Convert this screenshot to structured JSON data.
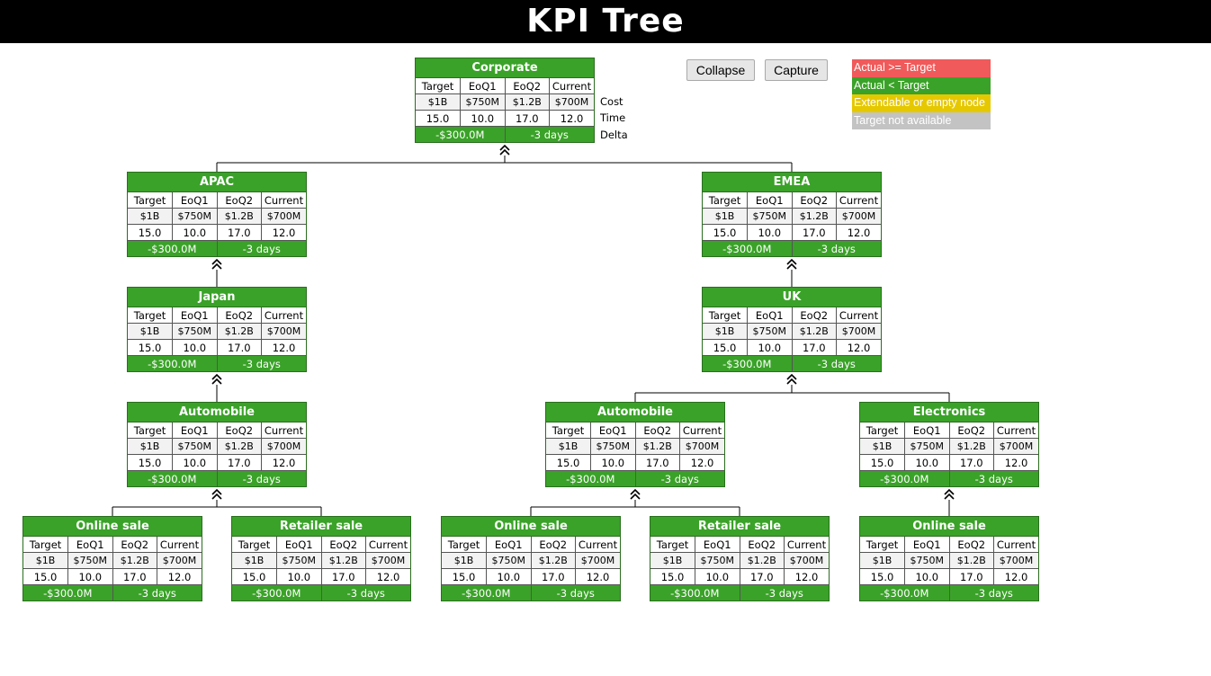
{
  "page_title": "KPI Tree",
  "buttons": {
    "collapse": "Collapse",
    "capture": "Capture"
  },
  "legend": [
    {
      "label": "Actual >= Target",
      "color": "#f05a5a"
    },
    {
      "label": "Actual < Target",
      "color": "#3aa228"
    },
    {
      "label": "Extendable or empty node",
      "color": "#e6c800"
    },
    {
      "label": "Target not available",
      "color": "#c3c3c3"
    }
  ],
  "row_labels": {
    "cost": "Cost",
    "time": "Time",
    "delta": "Delta"
  },
  "columns": [
    "Target",
    "EoQ1",
    "EoQ2",
    "Current"
  ],
  "colors": {
    "node_header": "#3aa228",
    "header_bar": "#000000"
  },
  "nodes": [
    {
      "id": "corporate",
      "name": "Corporate",
      "cost": [
        "$1B",
        "$750M",
        "$1.2B",
        "$700M"
      ],
      "time": [
        "15.0",
        "10.0",
        "17.0",
        "12.0"
      ],
      "delta": [
        "-$300.0M",
        "-3 days"
      ]
    },
    {
      "id": "apac",
      "name": "APAC",
      "cost": [
        "$1B",
        "$750M",
        "$1.2B",
        "$700M"
      ],
      "time": [
        "15.0",
        "10.0",
        "17.0",
        "12.0"
      ],
      "delta": [
        "-$300.0M",
        "-3 days"
      ]
    },
    {
      "id": "emea",
      "name": "EMEA",
      "cost": [
        "$1B",
        "$750M",
        "$1.2B",
        "$700M"
      ],
      "time": [
        "15.0",
        "10.0",
        "17.0",
        "12.0"
      ],
      "delta": [
        "-$300.0M",
        "-3 days"
      ]
    },
    {
      "id": "japan",
      "name": "Japan",
      "cost": [
        "$1B",
        "$750M",
        "$1.2B",
        "$700M"
      ],
      "time": [
        "15.0",
        "10.0",
        "17.0",
        "12.0"
      ],
      "delta": [
        "-$300.0M",
        "-3 days"
      ]
    },
    {
      "id": "uk",
      "name": "UK",
      "cost": [
        "$1B",
        "$750M",
        "$1.2B",
        "$700M"
      ],
      "time": [
        "15.0",
        "10.0",
        "17.0",
        "12.0"
      ],
      "delta": [
        "-$300.0M",
        "-3 days"
      ]
    },
    {
      "id": "japan-automobile",
      "name": "Automobile",
      "cost": [
        "$1B",
        "$750M",
        "$1.2B",
        "$700M"
      ],
      "time": [
        "15.0",
        "10.0",
        "17.0",
        "12.0"
      ],
      "delta": [
        "-$300.0M",
        "-3 days"
      ]
    },
    {
      "id": "uk-automobile",
      "name": "Automobile",
      "cost": [
        "$1B",
        "$750M",
        "$1.2B",
        "$700M"
      ],
      "time": [
        "15.0",
        "10.0",
        "17.0",
        "12.0"
      ],
      "delta": [
        "-$300.0M",
        "-3 days"
      ]
    },
    {
      "id": "uk-electronics",
      "name": "Electronics",
      "cost": [
        "$1B",
        "$750M",
        "$1.2B",
        "$700M"
      ],
      "time": [
        "15.0",
        "10.0",
        "17.0",
        "12.0"
      ],
      "delta": [
        "-$300.0M",
        "-3 days"
      ]
    },
    {
      "id": "japan-auto-online",
      "name": "Online sale",
      "cost": [
        "$1B",
        "$750M",
        "$1.2B",
        "$700M"
      ],
      "time": [
        "15.0",
        "10.0",
        "17.0",
        "12.0"
      ],
      "delta": [
        "-$300.0M",
        "-3 days"
      ]
    },
    {
      "id": "japan-auto-retailer",
      "name": "Retailer sale",
      "cost": [
        "$1B",
        "$750M",
        "$1.2B",
        "$700M"
      ],
      "time": [
        "15.0",
        "10.0",
        "17.0",
        "12.0"
      ],
      "delta": [
        "-$300.0M",
        "-3 days"
      ]
    },
    {
      "id": "uk-auto-online",
      "name": "Online sale",
      "cost": [
        "$1B",
        "$750M",
        "$1.2B",
        "$700M"
      ],
      "time": [
        "15.0",
        "10.0",
        "17.0",
        "12.0"
      ],
      "delta": [
        "-$300.0M",
        "-3 days"
      ]
    },
    {
      "id": "uk-auto-retailer",
      "name": "Retailer sale",
      "cost": [
        "$1B",
        "$750M",
        "$1.2B",
        "$700M"
      ],
      "time": [
        "15.0",
        "10.0",
        "17.0",
        "12.0"
      ],
      "delta": [
        "-$300.0M",
        "-3 days"
      ]
    },
    {
      "id": "uk-elec-online",
      "name": "Online sale",
      "cost": [
        "$1B",
        "$750M",
        "$1.2B",
        "$700M"
      ],
      "time": [
        "15.0",
        "10.0",
        "17.0",
        "12.0"
      ],
      "delta": [
        "-$300.0M",
        "-3 days"
      ]
    }
  ],
  "edges": [
    [
      "corporate",
      "apac"
    ],
    [
      "corporate",
      "emea"
    ],
    [
      "apac",
      "japan"
    ],
    [
      "emea",
      "uk"
    ],
    [
      "japan",
      "japan-automobile"
    ],
    [
      "uk",
      "uk-automobile"
    ],
    [
      "uk",
      "uk-electronics"
    ],
    [
      "japan-automobile",
      "japan-auto-online"
    ],
    [
      "japan-automobile",
      "japan-auto-retailer"
    ],
    [
      "uk-automobile",
      "uk-auto-online"
    ],
    [
      "uk-automobile",
      "uk-auto-retailer"
    ],
    [
      "uk-electronics",
      "uk-elec-online"
    ]
  ],
  "toggle_icon": "collapse-chevron-icon"
}
